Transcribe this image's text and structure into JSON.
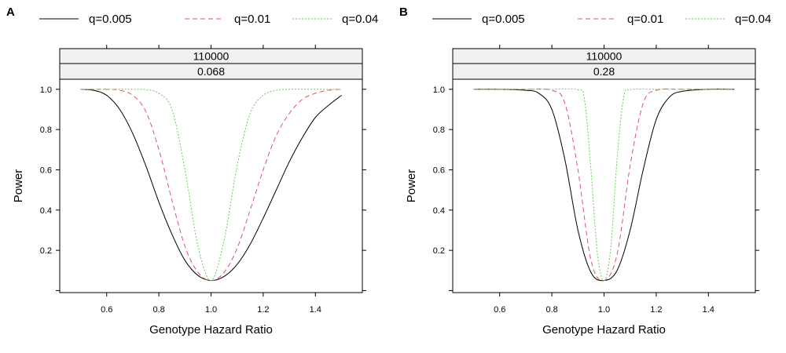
{
  "chart_data": [
    {
      "type": "line",
      "panel_label": "A",
      "strips": [
        "110000",
        "0.068"
      ],
      "xlabel": "Genotype Hazard Ratio",
      "ylabel": "Power",
      "xlim": [
        0.42,
        1.58
      ],
      "ylim": [
        -0.01,
        1.05
      ],
      "xticks": [
        "0.6",
        "0.8",
        "1.0",
        "1.2",
        "1.4"
      ],
      "yticks": [
        "0.2",
        "0.4",
        "0.6",
        "0.8",
        "1.0"
      ],
      "legend_position": "top",
      "series": [
        {
          "name": "q=0.005",
          "color": "#000000",
          "dash": "solid",
          "x": [
            0.5,
            0.55,
            0.6,
            0.65,
            0.7,
            0.75,
            0.8,
            0.85,
            0.9,
            0.95,
            1.0,
            1.05,
            1.1,
            1.15,
            1.2,
            1.25,
            1.3,
            1.35,
            1.4,
            1.45,
            1.5
          ],
          "y": [
            1.0,
            0.995,
            0.97,
            0.9,
            0.78,
            0.62,
            0.44,
            0.28,
            0.15,
            0.075,
            0.05,
            0.07,
            0.13,
            0.23,
            0.36,
            0.5,
            0.64,
            0.76,
            0.86,
            0.92,
            0.97
          ]
        },
        {
          "name": "q=0.01",
          "color": "#df536b",
          "dash": "dashed",
          "x": [
            0.5,
            0.55,
            0.6,
            0.65,
            0.7,
            0.75,
            0.8,
            0.85,
            0.9,
            0.95,
            1.0,
            1.05,
            1.1,
            1.15,
            1.2,
            1.25,
            1.3,
            1.35,
            1.4,
            1.45,
            1.5
          ],
          "y": [
            1.0,
            1.0,
            1.0,
            0.995,
            0.97,
            0.89,
            0.7,
            0.45,
            0.22,
            0.09,
            0.05,
            0.09,
            0.21,
            0.4,
            0.6,
            0.77,
            0.88,
            0.95,
            0.98,
            0.995,
            1.0
          ]
        },
        {
          "name": "q=0.04",
          "color": "#61d04f",
          "dash": "dotted",
          "x": [
            0.5,
            0.6,
            0.7,
            0.75,
            0.8,
            0.85,
            0.9,
            0.95,
            1.0,
            1.05,
            1.1,
            1.15,
            1.2,
            1.25,
            1.3,
            1.4,
            1.5
          ],
          "y": [
            1.0,
            1.0,
            1.0,
            0.998,
            0.98,
            0.9,
            0.6,
            0.22,
            0.05,
            0.25,
            0.62,
            0.88,
            0.97,
            0.995,
            1.0,
            1.0,
            1.0
          ]
        }
      ]
    },
    {
      "type": "line",
      "panel_label": "B",
      "strips": [
        "110000",
        "0.28"
      ],
      "xlabel": "Genotype Hazard Ratio",
      "ylabel": "Power",
      "xlim": [
        0.42,
        1.58
      ],
      "ylim": [
        -0.01,
        1.05
      ],
      "xticks": [
        "0.6",
        "0.8",
        "1.0",
        "1.2",
        "1.4"
      ],
      "yticks": [
        "0.2",
        "0.4",
        "0.6",
        "0.8",
        "1.0"
      ],
      "legend_position": "top",
      "series": [
        {
          "name": "q=0.005",
          "color": "#000000",
          "dash": "solid",
          "x": [
            0.5,
            0.6,
            0.7,
            0.75,
            0.8,
            0.85,
            0.9,
            0.95,
            1.0,
            1.05,
            1.1,
            1.15,
            1.2,
            1.25,
            1.3,
            1.4,
            1.5
          ],
          "y": [
            1.0,
            1.0,
            0.995,
            0.98,
            0.9,
            0.65,
            0.3,
            0.09,
            0.05,
            0.1,
            0.3,
            0.6,
            0.85,
            0.96,
            0.99,
            1.0,
            1.0
          ]
        },
        {
          "name": "q=0.01",
          "color": "#df536b",
          "dash": "dashed",
          "x": [
            0.5,
            0.6,
            0.7,
            0.8,
            0.85,
            0.9,
            0.95,
            1.0,
            1.05,
            1.1,
            1.15,
            1.2,
            1.3,
            1.4,
            1.5
          ],
          "y": [
            1.0,
            1.0,
            1.0,
            0.995,
            0.93,
            0.6,
            0.15,
            0.05,
            0.18,
            0.62,
            0.93,
            0.995,
            1.0,
            1.0,
            1.0
          ]
        },
        {
          "name": "q=0.04",
          "color": "#61d04f",
          "dash": "dotted",
          "x": [
            0.5,
            0.6,
            0.7,
            0.8,
            0.9,
            0.925,
            0.95,
            0.975,
            1.0,
            1.025,
            1.05,
            1.075,
            1.1,
            1.2,
            1.3,
            1.4,
            1.5
          ],
          "y": [
            1.0,
            1.0,
            1.0,
            1.0,
            0.998,
            0.95,
            0.6,
            0.18,
            0.05,
            0.2,
            0.65,
            0.96,
            0.998,
            1.0,
            1.0,
            1.0,
            1.0
          ]
        }
      ]
    }
  ]
}
